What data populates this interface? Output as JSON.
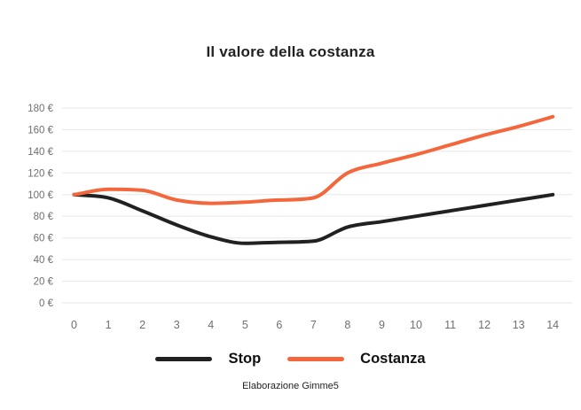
{
  "caption": "Elaborazione Gimme5",
  "colors": {
    "stop_line": "#212121",
    "costanza_line": "#F4673C",
    "gridline": "#E7E7E7",
    "tick_text": "#6F6F6F",
    "title_text": "#222222"
  },
  "chart_data": {
    "type": "line",
    "title": "Il valore della costanza",
    "categories": [
      "0",
      "1",
      "2",
      "3",
      "4",
      "5",
      "6",
      "7",
      "8",
      "9",
      "10",
      "11",
      "12",
      "13",
      "14"
    ],
    "series": [
      {
        "name": "Stop",
        "color": "#212121",
        "values": [
          100,
          97,
          85,
          72,
          61,
          55,
          56,
          57,
          70,
          75,
          80,
          85,
          90,
          95,
          100
        ]
      },
      {
        "name": "Costanza",
        "color": "#F4673C",
        "values": [
          100,
          105,
          104,
          95,
          92,
          93,
          95,
          97,
          120,
          129,
          137,
          146,
          155,
          163,
          172
        ]
      }
    ],
    "ylim": [
      0,
      180
    ],
    "ytick_step": 20,
    "ytick_labels": [
      "0 €",
      "20 €",
      "40 €",
      "60 €",
      "80 €",
      "100 €",
      "120 €",
      "140 €",
      "160 €",
      "180 €"
    ],
    "xlabel": "",
    "ylabel": "",
    "grid": "horizontal",
    "legend_position": "bottom"
  }
}
